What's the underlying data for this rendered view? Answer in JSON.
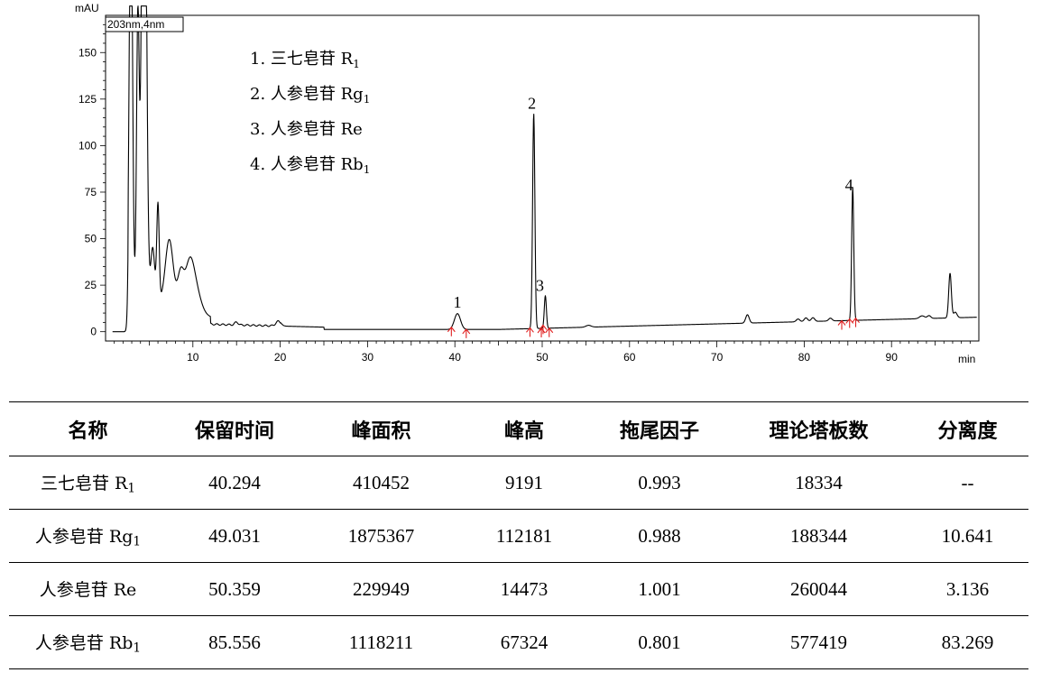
{
  "chart_data": {
    "type": "line",
    "ylabel": "mAU",
    "xlabel": "min",
    "wavelength": "203nm,4nm",
    "xlim": [
      0,
      100
    ],
    "ylim": [
      -5,
      170
    ],
    "x_ticks": [
      "10",
      "20",
      "30",
      "40",
      "50",
      "60",
      "70",
      "80",
      "90"
    ],
    "y_ticks": [
      "0",
      "25",
      "50",
      "75",
      "100",
      "125",
      "150"
    ],
    "legend": [
      {
        "num": "1.",
        "name": "三七皂苷 R",
        "sub": "1"
      },
      {
        "num": "2.",
        "name": "人参皂苷 Rg",
        "sub": "1"
      },
      {
        "num": "3.",
        "name": "人参皂苷 Re",
        "sub": ""
      },
      {
        "num": "4.",
        "name": "人参皂苷 Rb",
        "sub": "1"
      }
    ],
    "peaks": [
      {
        "label": "1",
        "rt": 40.294,
        "height": 10
      },
      {
        "label": "2",
        "rt": 49.031,
        "height": 117
      },
      {
        "label": "3",
        "rt": 50.359,
        "height": 19
      },
      {
        "label": "4",
        "rt": 85.556,
        "height": 73
      }
    ],
    "integration_marks": [
      39.6,
      41.3,
      48.6,
      49.9,
      50.1,
      50.8,
      84.3,
      85.2,
      85.9
    ]
  },
  "table": {
    "headers": [
      "名称",
      "保留时间",
      "峰面积",
      "峰高",
      "拖尾因子",
      "理论塔板数",
      "分离度"
    ],
    "rows": [
      {
        "name": "三七皂苷 R",
        "sub": "1",
        "rt": "40.294",
        "area": "410452",
        "height": "9191",
        "tailing": "0.993",
        "plates": "18334",
        "resolution": "--"
      },
      {
        "name": "人参皂苷 Rg",
        "sub": "1",
        "rt": "49.031",
        "area": "1875367",
        "height": "112181",
        "tailing": "0.988",
        "plates": "188344",
        "resolution": "10.641"
      },
      {
        "name": "人参皂苷 Re",
        "sub": "",
        "rt": "50.359",
        "area": "229949",
        "height": "14473",
        "tailing": "1.001",
        "plates": "260044",
        "resolution": "3.136"
      },
      {
        "name": "人参皂苷 Rb",
        "sub": "1",
        "rt": "85.556",
        "area": "1118211",
        "height": "67324",
        "tailing": "0.801",
        "plates": "577419",
        "resolution": "83.269"
      }
    ]
  }
}
